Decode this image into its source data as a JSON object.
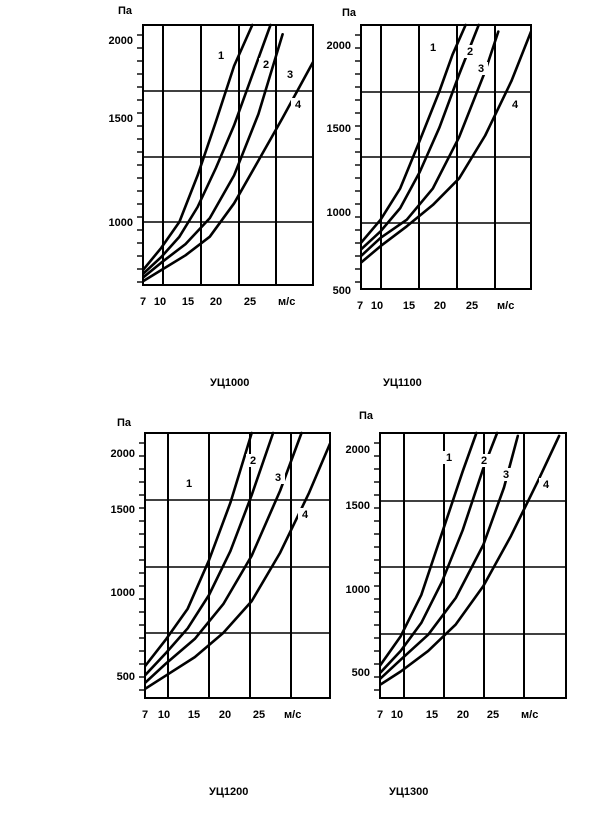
{
  "chart_data": [
    {
      "type": "line",
      "title": "УЦ1000",
      "ylabel": "Па",
      "xlabel": "м/с",
      "xunit": "м/с",
      "xticks": [
        "7",
        "10",
        "15",
        "20",
        "25"
      ],
      "yticks": [
        "1000",
        "1500",
        "2000"
      ],
      "ylim": [
        700,
        2100
      ],
      "xlim": [
        7,
        35
      ],
      "series": [
        {
          "name": "1",
          "x": [
            7,
            10,
            13,
            16,
            19,
            22,
            25
          ],
          "y": [
            780,
            900,
            1040,
            1290,
            1580,
            1880,
            2100
          ]
        },
        {
          "name": "2",
          "x": [
            7,
            10,
            13,
            16,
            19,
            22,
            25,
            28
          ],
          "y": [
            760,
            850,
            960,
            1120,
            1330,
            1560,
            1830,
            2100
          ]
        },
        {
          "name": "3",
          "x": [
            7,
            10,
            14,
            18,
            22,
            26,
            30
          ],
          "y": [
            740,
            820,
            920,
            1060,
            1290,
            1620,
            2050
          ]
        },
        {
          "name": "4",
          "x": [
            7,
            10,
            14,
            18,
            22,
            26,
            30,
            35
          ],
          "y": [
            720,
            780,
            860,
            960,
            1140,
            1370,
            1600,
            1900
          ]
        }
      ]
    },
    {
      "type": "line",
      "title": "УЦ1100",
      "ylabel": "Па",
      "xlabel": "м/с",
      "xunit": "м/с",
      "xticks": [
        "7",
        "10",
        "15",
        "20",
        "25"
      ],
      "yticks": [
        "500",
        "1000",
        "1500",
        "2000"
      ],
      "ylim": [
        500,
        2100
      ],
      "xlim": [
        7,
        33
      ],
      "series": [
        {
          "name": "1",
          "x": [
            7,
            10,
            13,
            16,
            19,
            21,
            23
          ],
          "y": [
            780,
            920,
            1110,
            1400,
            1700,
            1920,
            2100
          ]
        },
        {
          "name": "2",
          "x": [
            7,
            10,
            13,
            16,
            19,
            22,
            25
          ],
          "y": [
            740,
            850,
            990,
            1210,
            1480,
            1800,
            2100
          ]
        },
        {
          "name": "3",
          "x": [
            7,
            10,
            14,
            18,
            22,
            26,
            28
          ],
          "y": [
            700,
            810,
            920,
            1110,
            1420,
            1820,
            2060
          ]
        },
        {
          "name": "4",
          "x": [
            7,
            10,
            14,
            18,
            22,
            26,
            30,
            33
          ],
          "y": [
            660,
            760,
            880,
            1010,
            1170,
            1430,
            1760,
            2060
          ]
        }
      ]
    },
    {
      "type": "line",
      "title": "УЦ1200",
      "ylabel": "Па",
      "xlabel": "м/с",
      "xunit": "м/с",
      "xticks": [
        "7",
        "10",
        "15",
        "20",
        "25"
      ],
      "yticks": [
        "500",
        "1000",
        "1500",
        "2000"
      ],
      "ylim": [
        350,
        2100
      ],
      "xlim": [
        7,
        33
      ],
      "series": [
        {
          "name": "1",
          "x": [
            7,
            10,
            13,
            16,
            19,
            22
          ],
          "y": [
            560,
            740,
            940,
            1260,
            1640,
            2100
          ]
        },
        {
          "name": "2",
          "x": [
            7,
            10,
            13,
            16,
            19,
            22,
            25
          ],
          "y": [
            500,
            650,
            810,
            1030,
            1320,
            1690,
            2100
          ]
        },
        {
          "name": "3",
          "x": [
            7,
            10,
            14,
            18,
            22,
            26,
            29
          ],
          "y": [
            450,
            580,
            740,
            970,
            1290,
            1720,
            2100
          ]
        },
        {
          "name": "4",
          "x": [
            7,
            10,
            14,
            18,
            22,
            26,
            30,
            33
          ],
          "y": [
            410,
            500,
            620,
            780,
            990,
            1310,
            1700,
            2030
          ]
        }
      ]
    },
    {
      "type": "line",
      "title": "УЦ1300",
      "ylabel": "Па",
      "xlabel": "м/с",
      "xunit": "м/с",
      "xticks": [
        "7",
        "10",
        "15",
        "20",
        "25"
      ],
      "yticks": [
        "500",
        "1000",
        "1500",
        "2000"
      ],
      "ylim": [
        300,
        2100
      ],
      "xlim": [
        7,
        34
      ],
      "series": [
        {
          "name": "1",
          "x": [
            7,
            10,
            13,
            16,
            19,
            21
          ],
          "y": [
            520,
            720,
            1000,
            1420,
            1840,
            2100
          ]
        },
        {
          "name": "2",
          "x": [
            7,
            10,
            13,
            16,
            19,
            22,
            24
          ],
          "y": [
            470,
            620,
            810,
            1090,
            1440,
            1860,
            2100
          ]
        },
        {
          "name": "3",
          "x": [
            7,
            10,
            14,
            18,
            22,
            25,
            27
          ],
          "y": [
            430,
            560,
            730,
            980,
            1340,
            1730,
            2080
          ]
        },
        {
          "name": "4",
          "x": [
            7,
            10,
            14,
            18,
            22,
            26,
            30,
            33
          ],
          "y": [
            390,
            480,
            620,
            800,
            1060,
            1400,
            1780,
            2080
          ]
        }
      ]
    }
  ]
}
